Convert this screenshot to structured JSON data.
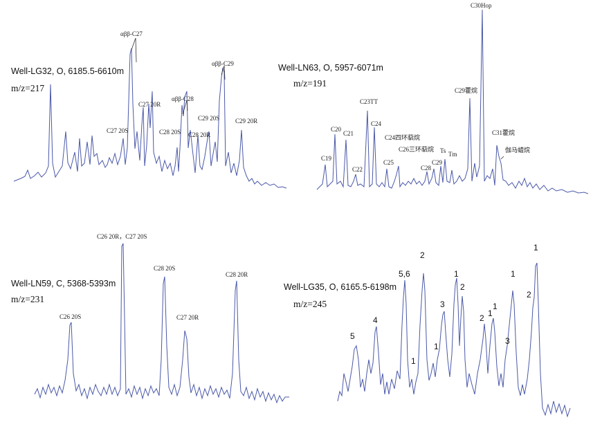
{
  "panels": [
    {
      "well": "Well-LG32, O, 6185.5-6610m",
      "mz": "m/z=217",
      "peaks": [
        "αββ-C27",
        "C27 20S",
        "C27 20R",
        "αββ-C28",
        "C28 20S",
        "C28 20R",
        "αββ-C29",
        "C29 20S",
        "C29 20R"
      ]
    },
    {
      "well": "Well-LN63, O, 5957-6071m",
      "mz": "m/z=191",
      "peaks": [
        "C30Hop",
        "C29藿烷",
        "C31藿烷",
        "伽马蜡烷",
        "C23TT",
        "C24",
        "C20",
        "C21",
        "C19",
        "C22",
        "C24四环萜烷",
        "C26三环萜烷",
        "Ts",
        "Tm",
        "C25",
        "C28",
        "C29"
      ]
    },
    {
      "well": "Well-LN59, C, 5368-5393m",
      "mz": "m/z=231",
      "peaks": [
        "C26 20R，C27 20S",
        "C28 20S",
        "C26 20S",
        "C27 20R",
        "C28 20R"
      ]
    },
    {
      "well": "Well-LG35, O, 6165.5-6198m",
      "mz": "m/z=245",
      "peaks": [
        "5",
        "4",
        "1",
        "5,6",
        "2",
        "1",
        "3",
        "1",
        "2",
        "2",
        "1",
        "1",
        "3",
        "1",
        "2",
        "1"
      ]
    }
  ],
  "chart_data": [
    {
      "type": "line",
      "title": "Well-LG32, O, 6185.5-6610m",
      "subtitle": "m/z=217",
      "xlabel": "",
      "ylabel": "",
      "axes": "none",
      "annotations": [
        "αββ-C27",
        "C27 20S",
        "C27 20R",
        "αββ-C28",
        "C28 20S",
        "C28 20R",
        "αββ-C29",
        "C29 20S",
        "C29 20R"
      ],
      "x": [
        0,
        0.06,
        0.13,
        0.18,
        0.25,
        0.3,
        0.36,
        0.4,
        0.43,
        0.455,
        0.5,
        0.55,
        0.59,
        0.63,
        0.665,
        0.7,
        0.755,
        0.79,
        0.84,
        0.9,
        1.0
      ],
      "y": [
        0.03,
        0.08,
        0.05,
        0.62,
        0.2,
        0.5,
        0.15,
        0.35,
        0.55,
        0.94,
        0.5,
        0.68,
        0.34,
        0.36,
        0.58,
        0.42,
        0.81,
        1.0,
        0.45,
        0.05,
        0.02
      ]
    },
    {
      "type": "line",
      "title": "Well-LN63, O, 5957-6071m",
      "subtitle": "m/z=191",
      "xlabel": "",
      "ylabel": "",
      "axes": "none",
      "annotations": [
        "C30Hop",
        "C29藿烷",
        "C31藿烷",
        "伽马蜡烷",
        "C23TT",
        "C24",
        "C20",
        "C21",
        "C19",
        "C22",
        "C24四环萜烷",
        "C26三环萜烷",
        "Ts",
        "Tm",
        "C25",
        "C28",
        "C29"
      ],
      "x": [
        0,
        0.03,
        0.075,
        0.11,
        0.16,
        0.2,
        0.215,
        0.26,
        0.3,
        0.32,
        0.45,
        0.48,
        0.57,
        0.6,
        0.68,
        0.7,
        0.99
      ],
      "y": [
        0.01,
        0.13,
        0.31,
        0.28,
        0.08,
        0.53,
        0.41,
        0.12,
        0.16,
        0.13,
        0.13,
        0.12,
        0.53,
        1.0,
        0.3,
        0.19,
        0.01
      ]
    },
    {
      "type": "line",
      "title": "Well-LN59, C, 5368-5393m",
      "subtitle": "m/z=231",
      "xlabel": "",
      "ylabel": "",
      "axes": "none",
      "annotations": [
        "C26 20R，C27 20S",
        "C28 20S",
        "C26 20S",
        "C27 20R",
        "C28 20R"
      ],
      "x": [
        0,
        0.14,
        0.2,
        0.34,
        0.51,
        0.59,
        0.77,
        1.0
      ],
      "y": [
        0.05,
        0.05,
        0.48,
        1.0,
        0.78,
        0.44,
        0.74,
        0.04
      ]
    },
    {
      "type": "line",
      "title": "Well-LG35, O, 6165.5-6198m",
      "subtitle": "m/z=245",
      "xlabel": "",
      "ylabel": "",
      "axes": "none",
      "annotations": [
        "5",
        "4",
        "1",
        "5,6",
        "2",
        "1",
        "3",
        "1",
        "2",
        "2",
        "1",
        "1",
        "3",
        "1",
        "2",
        "1"
      ],
      "x": [
        0,
        0.07,
        0.15,
        0.22,
        0.27,
        0.29,
        0.36,
        0.39,
        0.44,
        0.49,
        0.5,
        0.62,
        0.66,
        0.72,
        0.76,
        0.8,
        0.9,
        1.0
      ],
      "y": [
        0.12,
        0.42,
        0.55,
        0.23,
        0.86,
        0.97,
        0.22,
        0.66,
        0.93,
        0.79,
        0.57,
        0.55,
        0.6,
        0.4,
        0.88,
        0.69,
        1.0,
        0.03
      ]
    }
  ]
}
